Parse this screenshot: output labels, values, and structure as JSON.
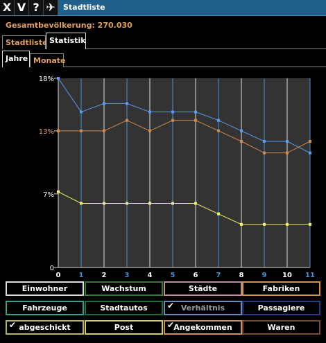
{
  "window": {
    "title": "Stadtliste",
    "buttons": [
      "X",
      "V",
      "?",
      "✈"
    ]
  },
  "population": {
    "label": "Gesamtbevölkerung: 270.030"
  },
  "tabs_top": [
    {
      "label": "Stadtliste",
      "active": false
    },
    {
      "label": "Statistik",
      "active": true
    }
  ],
  "tabs_sub": [
    {
      "label": "Jahre",
      "active": true
    },
    {
      "label": "Monate",
      "active": false
    }
  ],
  "chart_data": {
    "type": "line",
    "x": [
      0,
      1,
      2,
      3,
      4,
      5,
      6,
      7,
      8,
      9,
      10,
      11
    ],
    "yticks": [
      "18%",
      "13%",
      "7%",
      "0"
    ],
    "ylim": [
      0,
      18
    ],
    "series": [
      {
        "color": "#5b9cf0",
        "values": [
          18.0,
          14.8,
          15.6,
          15.6,
          14.8,
          14.8,
          14.8,
          14.0,
          13.0,
          12.0,
          12.0,
          10.9
        ]
      },
      {
        "color": "#d08a4c",
        "values": [
          13.0,
          13.0,
          13.0,
          14.0,
          13.0,
          14.0,
          14.0,
          13.0,
          12.0,
          10.9,
          10.9,
          12.0
        ]
      },
      {
        "color": "#f2f268",
        "values": [
          7.2,
          6.1,
          6.1,
          6.1,
          6.1,
          6.1,
          6.1,
          5.1,
          4.1,
          4.1,
          4.1,
          4.1
        ]
      }
    ],
    "x_highlight": [
      1,
      3,
      5,
      7,
      9,
      11
    ]
  },
  "buttons": [
    {
      "label": "Einwohner",
      "border": "#dddddd",
      "checked": false
    },
    {
      "label": "Wachstum",
      "border": "#2e7d32",
      "checked": false
    },
    {
      "label": "Städte",
      "border": "#c48aa0",
      "checked": false
    },
    {
      "label": "Fabriken",
      "border": "#d9913a",
      "checked": false
    },
    {
      "label": "Fahrzeuge",
      "border": "#3aa08a",
      "checked": false
    },
    {
      "label": "Stadtautos",
      "border": "#1f6f3a",
      "checked": false
    },
    {
      "label": "Verhältnis",
      "border": "#6a8bb5",
      "checked": true
    },
    {
      "label": "Passagiere",
      "border": "#2a3a8a",
      "checked": false
    },
    {
      "label": "abgeschickt",
      "border": "#b8b860",
      "checked": true
    },
    {
      "label": "Post",
      "border": "#d0d060",
      "checked": false
    },
    {
      "label": "Angekommen",
      "border": "#d0905a",
      "checked": true
    },
    {
      "label": "Waren",
      "border": "#7a4a2a",
      "checked": false
    }
  ]
}
